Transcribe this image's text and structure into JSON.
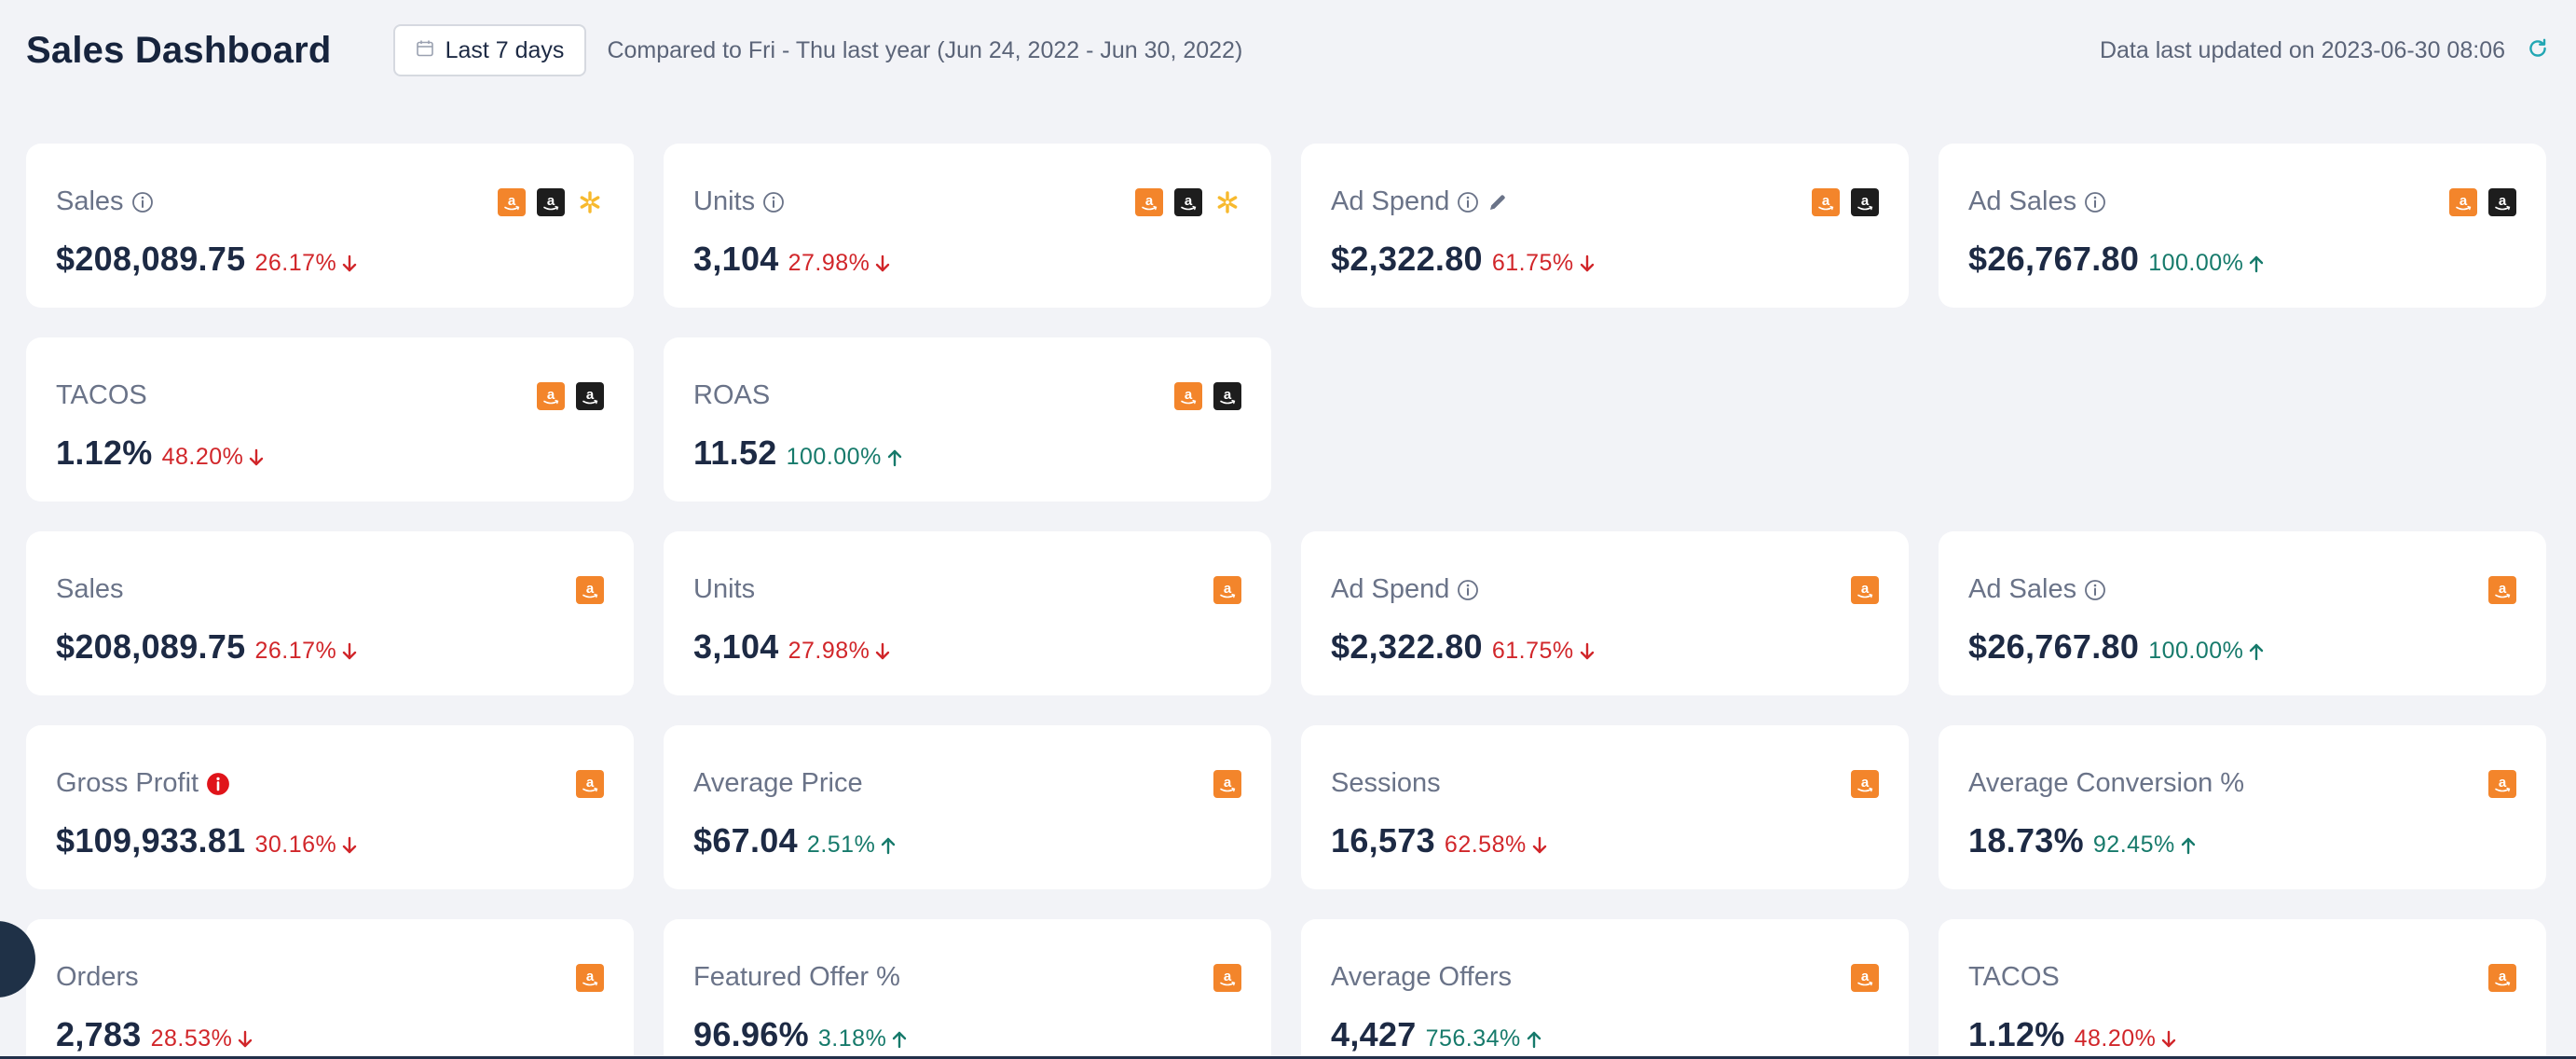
{
  "header": {
    "title": "Sales Dashboard",
    "date_range_label": "Last 7 days",
    "comparison_text": "Compared to Fri - Thu last year (Jun 24, 2022 - Jun 30, 2022)",
    "updated_text": "Data last updated on 2023-06-30 08:06"
  },
  "colors": {
    "positive": "#167a6b",
    "negative": "#d1262a",
    "amazon_orange": "#f3852b",
    "amazon_dark": "#1d1d1d",
    "walmart_yellow": "#f7b92d",
    "alert_red": "#e0141a"
  },
  "cards": [
    {
      "title": "Sales",
      "value": "$208,089.75",
      "delta": "26.17%",
      "direction": "down",
      "icons": [
        "info-icon"
      ],
      "marketplaces": [
        "amazon-icon",
        "amazon-dark-icon",
        "walmart-icon"
      ]
    },
    {
      "title": "Units",
      "value": "3,104",
      "delta": "27.98%",
      "direction": "down",
      "icons": [
        "info-icon"
      ],
      "marketplaces": [
        "amazon-icon",
        "amazon-dark-icon",
        "walmart-icon"
      ]
    },
    {
      "title": "Ad Spend",
      "value": "$2,322.80",
      "delta": "61.75%",
      "direction": "down",
      "icons": [
        "info-icon",
        "edit-icon"
      ],
      "marketplaces": [
        "amazon-icon",
        "amazon-dark-icon"
      ]
    },
    {
      "title": "Ad Sales",
      "value": "$26,767.80",
      "delta": "100.00%",
      "direction": "up",
      "icons": [
        "info-icon"
      ],
      "marketplaces": [
        "amazon-icon",
        "amazon-dark-icon"
      ]
    },
    {
      "title": "TACOS",
      "value": "1.12%",
      "delta": "48.20%",
      "direction": "down",
      "icons": [],
      "marketplaces": [
        "amazon-icon",
        "amazon-dark-icon"
      ]
    },
    {
      "title": "ROAS",
      "value": "11.52",
      "delta": "100.00%",
      "direction": "up",
      "icons": [],
      "marketplaces": [
        "amazon-icon",
        "amazon-dark-icon"
      ]
    },
    {
      "title": "Sales",
      "value": "$208,089.75",
      "delta": "26.17%",
      "direction": "down",
      "icons": [],
      "marketplaces": [
        "amazon-icon"
      ]
    },
    {
      "title": "Units",
      "value": "3,104",
      "delta": "27.98%",
      "direction": "down",
      "icons": [],
      "marketplaces": [
        "amazon-icon"
      ]
    },
    {
      "title": "Ad Spend",
      "value": "$2,322.80",
      "delta": "61.75%",
      "direction": "down",
      "icons": [
        "info-icon"
      ],
      "marketplaces": [
        "amazon-icon"
      ]
    },
    {
      "title": "Ad Sales",
      "value": "$26,767.80",
      "delta": "100.00%",
      "direction": "up",
      "icons": [
        "info-icon"
      ],
      "marketplaces": [
        "amazon-icon"
      ]
    },
    {
      "title": "Gross Profit",
      "value": "$109,933.81",
      "delta": "30.16%",
      "direction": "down",
      "icons": [
        "alert-icon"
      ],
      "marketplaces": [
        "amazon-icon"
      ]
    },
    {
      "title": "Average Price",
      "value": "$67.04",
      "delta": "2.51%",
      "direction": "up",
      "icons": [],
      "marketplaces": [
        "amazon-icon"
      ]
    },
    {
      "title": "Sessions",
      "value": "16,573",
      "delta": "62.58%",
      "direction": "down",
      "icons": [],
      "marketplaces": [
        "amazon-icon"
      ]
    },
    {
      "title": "Average Conversion %",
      "value": "18.73%",
      "delta": "92.45%",
      "direction": "up",
      "icons": [],
      "marketplaces": [
        "amazon-icon"
      ]
    },
    {
      "title": "Orders",
      "value": "2,783",
      "delta": "28.53%",
      "direction": "down",
      "icons": [],
      "marketplaces": [
        "amazon-icon"
      ]
    },
    {
      "title": "Featured Offer %",
      "value": "96.96%",
      "delta": "3.18%",
      "direction": "up",
      "icons": [],
      "marketplaces": [
        "amazon-icon"
      ]
    },
    {
      "title": "Average Offers",
      "value": "4,427",
      "delta": "756.34%",
      "direction": "up",
      "icons": [],
      "marketplaces": [
        "amazon-icon"
      ]
    },
    {
      "title": "TACOS",
      "value": "1.12%",
      "delta": "48.20%",
      "direction": "down",
      "icons": [],
      "marketplaces": [
        "amazon-icon"
      ]
    }
  ]
}
